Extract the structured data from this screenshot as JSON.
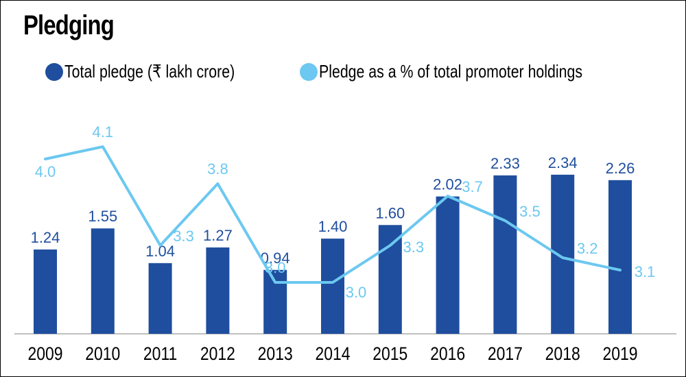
{
  "chart_data": {
    "type": "bar",
    "title": "Pledging",
    "xlabel": "",
    "ylabel": "",
    "categories": [
      "2009",
      "2010",
      "2011",
      "2012",
      "2013",
      "2014",
      "2015",
      "2016",
      "2017",
      "2018",
      "2019"
    ],
    "series": [
      {
        "name": "Total pledge (₹ lakh crore)",
        "type": "bar",
        "color": "#1f4e9e",
        "values": [
          1.24,
          1.55,
          1.04,
          1.27,
          0.94,
          1.4,
          1.6,
          2.02,
          2.33,
          2.34,
          2.26
        ],
        "labels": [
          "1.24",
          "1.55",
          "1.04",
          "1.27",
          "0.94",
          "1.40",
          "1.60",
          "2.02",
          "2.33",
          "2.34",
          "2.26"
        ]
      },
      {
        "name": "Pledge as a % of total promoter holdings",
        "type": "line",
        "color": "#6cc8f0",
        "values": [
          4.0,
          4.1,
          3.3,
          3.8,
          3.0,
          3.0,
          3.3,
          3.7,
          3.5,
          3.2,
          3.1
        ],
        "labels": [
          "4.0",
          "4.1",
          "3.3",
          "3.8",
          "3.0",
          "3.0",
          "3.3",
          "3.7",
          "3.5",
          "3.2",
          "3.1"
        ]
      }
    ],
    "grid": false,
    "legend_position": "top-left"
  }
}
